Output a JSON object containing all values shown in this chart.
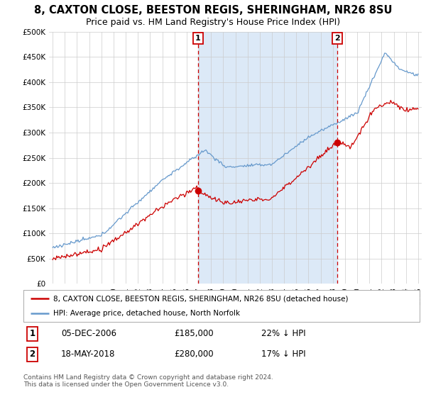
{
  "title": "8, CAXTON CLOSE, BEESTON REGIS, SHERINGHAM, NR26 8SU",
  "subtitle": "Price paid vs. HM Land Registry's House Price Index (HPI)",
  "title_fontsize": 10.5,
  "subtitle_fontsize": 9,
  "ylim": [
    0,
    500000
  ],
  "yticks": [
    0,
    50000,
    100000,
    150000,
    200000,
    250000,
    300000,
    350000,
    400000,
    450000,
    500000
  ],
  "ytick_labels": [
    "£0",
    "£50K",
    "£100K",
    "£150K",
    "£200K",
    "£250K",
    "£300K",
    "£350K",
    "£400K",
    "£450K",
    "£500K"
  ],
  "background_color": "#ffffff",
  "plot_bg_color": "#ffffff",
  "red_color": "#cc0000",
  "blue_color": "#6699cc",
  "grid_color": "#cccccc",
  "shade_color": "#dce9f7",
  "marker1_date": 2006.92,
  "marker1_price": 185000,
  "marker1_label": "05-DEC-2006",
  "marker1_amount": "£185,000",
  "marker1_pct": "22% ↓ HPI",
  "marker2_date": 2018.38,
  "marker2_price": 280000,
  "marker2_label": "18-MAY-2018",
  "marker2_amount": "£280,000",
  "marker2_pct": "17% ↓ HPI",
  "legend_line1": "8, CAXTON CLOSE, BEESTON REGIS, SHERINGHAM, NR26 8SU (detached house)",
  "legend_line2": "HPI: Average price, detached house, North Norfolk",
  "footer": "Contains HM Land Registry data © Crown copyright and database right 2024.\nThis data is licensed under the Open Government Licence v3.0.",
  "xlim_start": 1994.7,
  "xlim_end": 2025.3
}
